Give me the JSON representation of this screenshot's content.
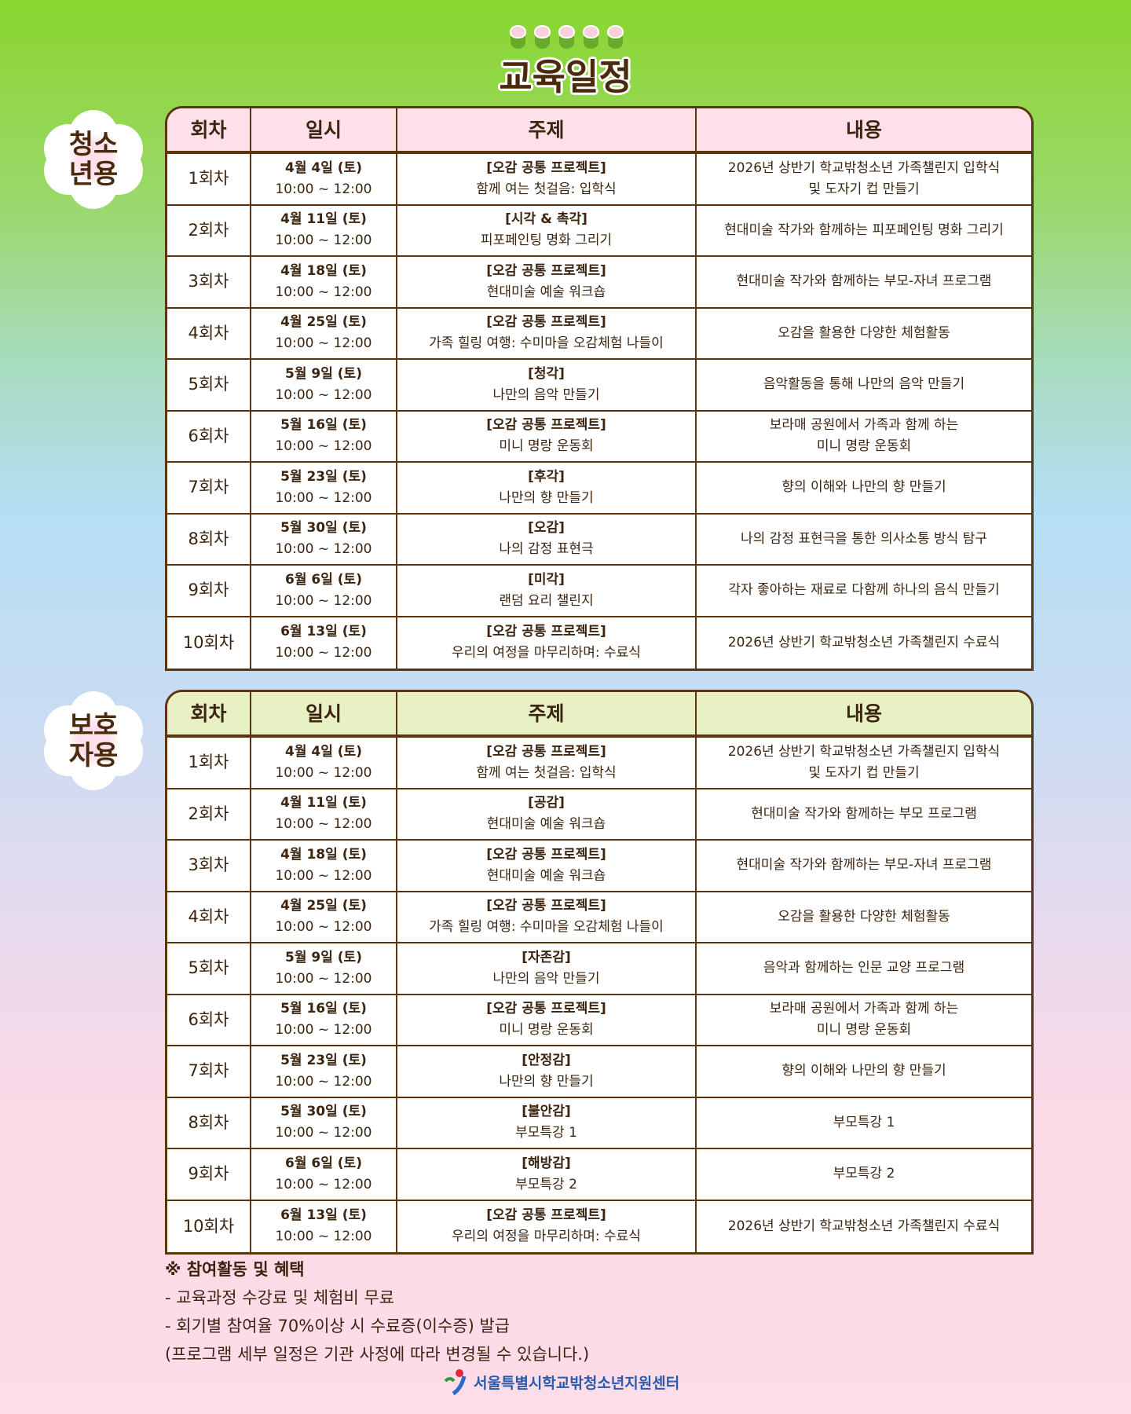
{
  "title": "교육일정",
  "colors": {
    "border": "#5a3510",
    "youth_header": "#fde0ea",
    "parent_header": "#e7f1c4"
  },
  "headers": [
    "회차",
    "일시",
    "주제",
    "내용"
  ],
  "youth": {
    "badge": [
      "청소",
      "년용"
    ],
    "rows": [
      {
        "n": "1회차",
        "date": "4월 4일 (토)",
        "time": "10:00 ~ 12:00",
        "topic": "[오감 공통 프로젝트]",
        "sub": "함께 여는 첫걸음: 입학식",
        "content": [
          "2026년 상반기 학교밖청소년 가족챌린지 입학식",
          "및 도자기 컵 만들기"
        ]
      },
      {
        "n": "2회차",
        "date": "4월 11일 (토)",
        "time": "10:00 ~ 12:00",
        "topic": "[시각 & 촉각]",
        "sub": "피포페인팅 명화 그리기",
        "content": [
          "현대미술 작가와 함께하는 피포페인팅 명화 그리기"
        ]
      },
      {
        "n": "3회차",
        "date": "4월 18일 (토)",
        "time": "10:00 ~ 12:00",
        "topic": "[오감 공통 프로젝트]",
        "sub": "현대미술 예술 워크숍",
        "content": [
          "현대미술 작가와 함께하는 부모-자녀 프로그램"
        ]
      },
      {
        "n": "4회차",
        "date": "4월 25일 (토)",
        "time": "10:00 ~ 12:00",
        "topic": "[오감 공통 프로젝트]",
        "sub": "가족 힐링 여행: 수미마을 오감체험 나들이",
        "content": [
          "오감을 활용한 다양한 체험활동"
        ]
      },
      {
        "n": "5회차",
        "date": "5월 9일 (토)",
        "time": "10:00 ~ 12:00",
        "topic": "[청각]",
        "sub": "나만의 음악 만들기",
        "content": [
          "음악활동을 통해 나만의 음악 만들기"
        ]
      },
      {
        "n": "6회차",
        "date": "5월 16일 (토)",
        "time": "10:00 ~ 12:00",
        "topic": "[오감 공통 프로젝트]",
        "sub": "미니 명랑 운동회",
        "content": [
          "보라매 공원에서 가족과 함께 하는",
          "미니 명랑 운동회"
        ]
      },
      {
        "n": "7회차",
        "date": "5월 23일 (토)",
        "time": "10:00 ~ 12:00",
        "topic": "[후각]",
        "sub": "나만의 향 만들기",
        "content": [
          "향의 이해와 나만의 향 만들기"
        ]
      },
      {
        "n": "8회차",
        "date": "5월 30일 (토)",
        "time": "10:00 ~ 12:00",
        "topic": "[오감]",
        "sub": "나의 감정 표현극",
        "content": [
          "나의 감정 표현극을 통한 의사소통 방식 탐구"
        ]
      },
      {
        "n": "9회차",
        "date": "6월 6일 (토)",
        "time": "10:00 ~ 12:00",
        "topic": "[미각]",
        "sub": "랜덤 요리 챌린지",
        "content": [
          "각자 좋아하는 재료로 다함께 하나의 음식 만들기"
        ]
      },
      {
        "n": "10회차",
        "date": "6월 13일 (토)",
        "time": "10:00 ~ 12:00",
        "topic": "[오감 공통 프로젝트]",
        "sub": "우리의 여정을 마무리하며: 수료식",
        "content": [
          "2026년 상반기 학교밖청소년 가족챌린지 수료식"
        ]
      }
    ]
  },
  "parent": {
    "badge": [
      "보호",
      "자용"
    ],
    "rows": [
      {
        "n": "1회차",
        "date": "4월 4일 (토)",
        "time": "10:00 ~ 12:00",
        "topic": "[오감 공통 프로젝트]",
        "sub": "함께 여는 첫걸음: 입학식",
        "content": [
          "2026년 상반기 학교밖청소년 가족챌린지 입학식",
          "및 도자기 컵 만들기"
        ]
      },
      {
        "n": "2회차",
        "date": "4월 11일 (토)",
        "time": "10:00 ~ 12:00",
        "topic": "[공감]",
        "sub": "현대미술 예술 워크숍",
        "content": [
          "현대미술 작가와 함께하는 부모 프로그램"
        ]
      },
      {
        "n": "3회차",
        "date": "4월 18일 (토)",
        "time": "10:00 ~ 12:00",
        "topic": "[오감 공통 프로젝트]",
        "sub": "현대미술 예술 워크숍",
        "content": [
          "현대미술 작가와 함께하는 부모-자녀 프로그램"
        ]
      },
      {
        "n": "4회차",
        "date": "4월 25일 (토)",
        "time": "10:00 ~ 12:00",
        "topic": "[오감 공통 프로젝트]",
        "sub": "가족 힐링 여행: 수미마을 오감체험 나들이",
        "content": [
          "오감을 활용한 다양한 체험활동"
        ]
      },
      {
        "n": "5회차",
        "date": "5월 9일 (토)",
        "time": "10:00 ~ 12:00",
        "topic": "[자존감]",
        "sub": "나만의 음악 만들기",
        "content": [
          "음악과 함께하는 인문 교양 프로그램"
        ]
      },
      {
        "n": "6회차",
        "date": "5월 16일 (토)",
        "time": "10:00 ~ 12:00",
        "topic": "[오감 공통 프로젝트]",
        "sub": "미니 명랑 운동회",
        "content": [
          "보라매 공원에서 가족과 함께 하는",
          "미니 명랑 운동회"
        ]
      },
      {
        "n": "7회차",
        "date": "5월 23일 (토)",
        "time": "10:00 ~ 12:00",
        "topic": "[안정감]",
        "sub": "나만의 향 만들기",
        "content": [
          "향의 이해와 나만의 향 만들기"
        ]
      },
      {
        "n": "8회차",
        "date": "5월 30일 (토)",
        "time": "10:00 ~ 12:00",
        "topic": "[불안감]",
        "sub": "부모특강 1",
        "content": [
          "부모특강 1"
        ]
      },
      {
        "n": "9회차",
        "date": "6월 6일 (토)",
        "time": "10:00 ~ 12:00",
        "topic": "[해방감]",
        "sub": "부모특강 2",
        "content": [
          "부모특강 2"
        ]
      },
      {
        "n": "10회차",
        "date": "6월 13일 (토)",
        "time": "10:00 ~ 12:00",
        "topic": "[오감 공통 프로젝트]",
        "sub": "우리의 여정을 마무리하며: 수료식",
        "content": [
          "2026년 상반기 학교밖청소년 가족챌린지 수료식"
        ]
      }
    ]
  },
  "notes": {
    "heading": "※ 참여활동 및 혜택",
    "lines": [
      "- 교육과정 수강료 및 체험비 무료",
      "- 회기별 참여율 70%이상 시 수료증(이수증) 발급",
      "(프로그램 세부 일정은 기관 사정에 따라 변경될 수 있습니다.)"
    ]
  },
  "logo": {
    "text": "서울특별시학교밖청소년지원센터"
  }
}
